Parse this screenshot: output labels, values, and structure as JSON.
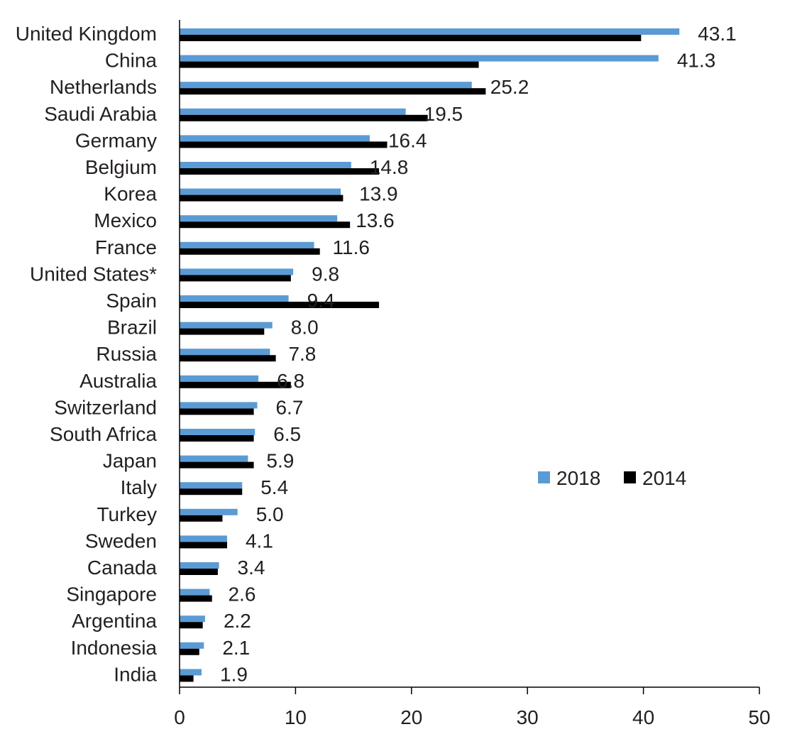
{
  "chart_data": {
    "type": "bar",
    "orientation": "horizontal",
    "categories": [
      "United Kingdom",
      "China",
      "Netherlands",
      "Saudi Arabia",
      "Germany",
      "Belgium",
      "Korea",
      "Mexico",
      "France",
      "United States*",
      "Spain",
      "Brazil",
      "Russia",
      "Australia",
      "Switzerland",
      "South Africa",
      "Japan",
      "Italy",
      "Turkey",
      "Sweden",
      "Canada",
      "Singapore",
      "Argentina",
      "Indonesia",
      "India"
    ],
    "series": [
      {
        "name": "2018",
        "color": "#5b9bd5",
        "values": [
          43.1,
          41.3,
          25.2,
          19.5,
          16.4,
          14.8,
          13.9,
          13.6,
          11.6,
          9.8,
          9.4,
          8.0,
          7.8,
          6.8,
          6.7,
          6.5,
          5.9,
          5.4,
          5.0,
          4.1,
          3.4,
          2.6,
          2.2,
          2.1,
          1.9
        ],
        "data_labels": [
          "43.1",
          "41.3",
          "25.2",
          "19.5",
          "16.4",
          "14.8",
          "13.9",
          "13.6",
          "11.6",
          "9.8",
          "9.4",
          "8.0",
          "7.8",
          "6.8",
          "6.7",
          "6.5",
          "5.9",
          "5.4",
          "5.0",
          "4.1",
          "3.4",
          "2.6",
          "2.2",
          "2.1",
          "1.9"
        ]
      },
      {
        "name": "2014",
        "color": "#000000",
        "values": [
          39.8,
          25.8,
          26.4,
          21.4,
          17.9,
          17.2,
          14.1,
          14.7,
          12.1,
          9.6,
          17.2,
          7.3,
          8.3,
          9.6,
          6.4,
          6.4,
          6.4,
          5.4,
          3.7,
          4.1,
          3.3,
          2.8,
          2.0,
          1.7,
          1.2
        ]
      }
    ],
    "xlim": [
      0,
      50
    ],
    "xticks": [
      "0",
      "10",
      "20",
      "30",
      "40",
      "50"
    ],
    "grid": false,
    "legend_position": "center-right"
  }
}
